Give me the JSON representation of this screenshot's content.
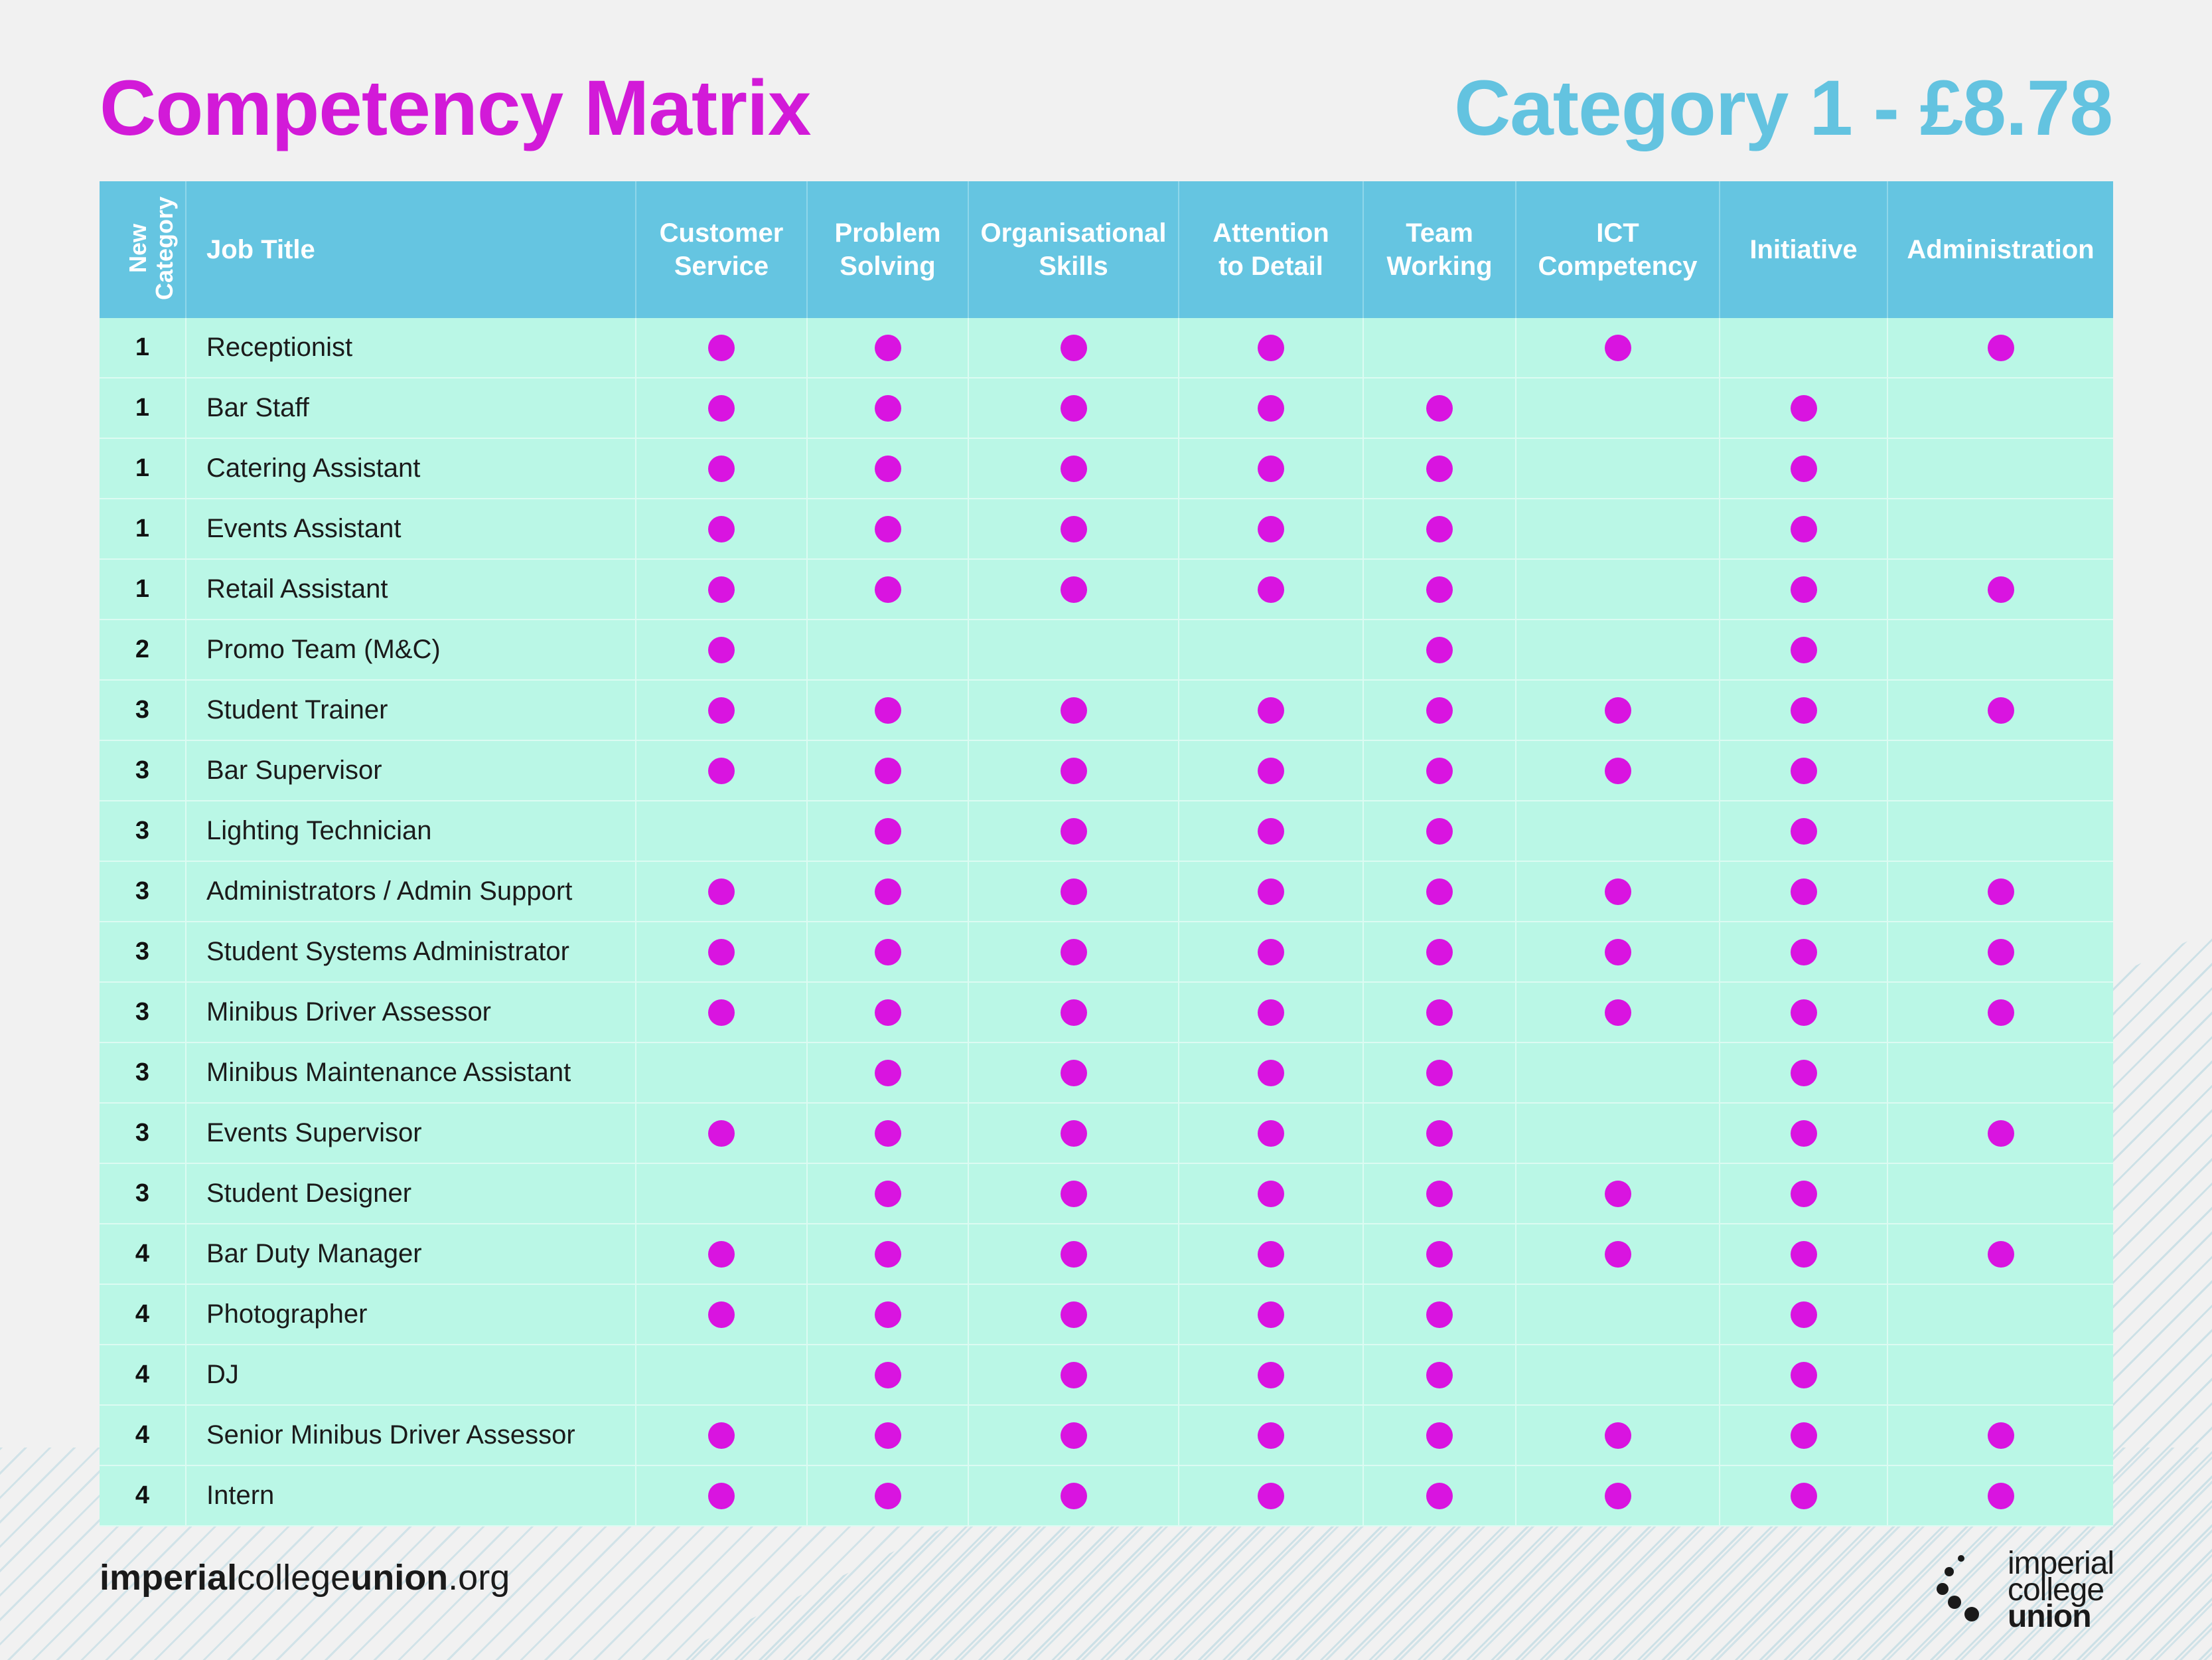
{
  "header": {
    "title": "Competency Matrix",
    "subtitle": "Category 1 - £8.78"
  },
  "table": {
    "columns": {
      "category": "New Category",
      "job_title": "Job Title",
      "competencies": [
        "Customer Service",
        "Problem Solving",
        "Organisational Skills",
        "Attention to Detail",
        "Team Working",
        "ICT Competency",
        "Initiative",
        "Administration"
      ]
    },
    "rows": [
      {
        "category": "1",
        "title": "Receptionist",
        "marks": [
          1,
          1,
          1,
          1,
          0,
          1,
          0,
          1
        ]
      },
      {
        "category": "1",
        "title": "Bar Staff",
        "marks": [
          1,
          1,
          1,
          1,
          1,
          0,
          1,
          0
        ]
      },
      {
        "category": "1",
        "title": "Catering Assistant",
        "marks": [
          1,
          1,
          1,
          1,
          1,
          0,
          1,
          0
        ]
      },
      {
        "category": "1",
        "title": "Events Assistant",
        "marks": [
          1,
          1,
          1,
          1,
          1,
          0,
          1,
          0
        ]
      },
      {
        "category": "1",
        "title": "Retail Assistant",
        "marks": [
          1,
          1,
          1,
          1,
          1,
          0,
          1,
          1
        ]
      },
      {
        "category": "2",
        "title": "Promo Team (M&C)",
        "marks": [
          1,
          0,
          0,
          0,
          1,
          0,
          1,
          0
        ]
      },
      {
        "category": "3",
        "title": "Student Trainer",
        "marks": [
          1,
          1,
          1,
          1,
          1,
          1,
          1,
          1
        ]
      },
      {
        "category": "3",
        "title": "Bar Supervisor",
        "marks": [
          1,
          1,
          1,
          1,
          1,
          1,
          1,
          0
        ]
      },
      {
        "category": "3",
        "title": "Lighting Technician",
        "marks": [
          0,
          1,
          1,
          1,
          1,
          0,
          1,
          0
        ]
      },
      {
        "category": "3",
        "title": "Administrators / Admin Support",
        "marks": [
          1,
          1,
          1,
          1,
          1,
          1,
          1,
          1
        ]
      },
      {
        "category": "3",
        "title": "Student Systems Administrator",
        "marks": [
          1,
          1,
          1,
          1,
          1,
          1,
          1,
          1
        ]
      },
      {
        "category": "3",
        "title": "Minibus Driver Assessor",
        "marks": [
          1,
          1,
          1,
          1,
          1,
          1,
          1,
          1
        ]
      },
      {
        "category": "3",
        "title": "Minibus Maintenance Assistant",
        "marks": [
          0,
          1,
          1,
          1,
          1,
          0,
          1,
          0
        ]
      },
      {
        "category": "3",
        "title": "Events Supervisor",
        "marks": [
          1,
          1,
          1,
          1,
          1,
          0,
          1,
          1
        ]
      },
      {
        "category": "3",
        "title": "Student Designer",
        "marks": [
          0,
          1,
          1,
          1,
          1,
          1,
          1,
          0
        ]
      },
      {
        "category": "4",
        "title": "Bar Duty Manager",
        "marks": [
          1,
          1,
          1,
          1,
          1,
          1,
          1,
          1
        ]
      },
      {
        "category": "4",
        "title": "Photographer",
        "marks": [
          1,
          1,
          1,
          1,
          1,
          0,
          1,
          0
        ]
      },
      {
        "category": "4",
        "title": "DJ",
        "marks": [
          0,
          1,
          1,
          1,
          1,
          0,
          1,
          0
        ]
      },
      {
        "category": "4",
        "title": "Senior Minibus Driver Assessor",
        "marks": [
          1,
          1,
          1,
          1,
          1,
          1,
          1,
          1
        ]
      },
      {
        "category": "4",
        "title": "Intern",
        "marks": [
          1,
          1,
          1,
          1,
          1,
          1,
          1,
          1
        ]
      }
    ]
  },
  "footer": {
    "url_parts": [
      "imperial",
      "college",
      "union",
      ".org"
    ],
    "logo_lines": [
      "imperial",
      "college",
      "union"
    ]
  },
  "colors": {
    "title": "#d21ad8",
    "subtitle": "#63c3e0",
    "header_bg": "#65c5e1",
    "row_bg": "#baf7e6",
    "dot": "#d914e0"
  },
  "icons": {
    "mark": "filled-circle",
    "logo": "dot-cluster"
  }
}
